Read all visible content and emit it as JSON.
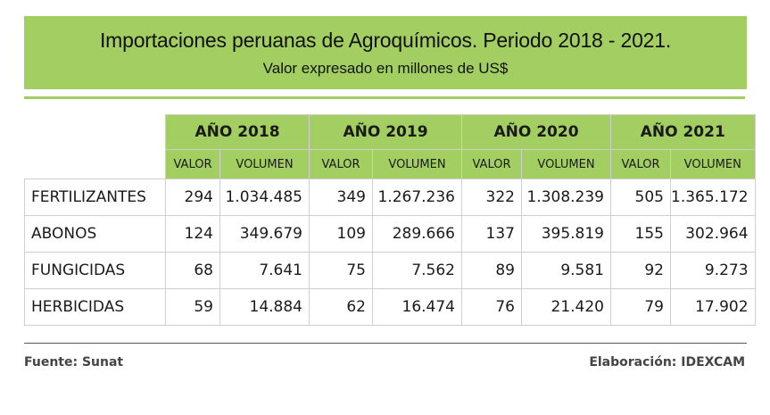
{
  "header": {
    "title": "Importaciones peruanas de Agroquímicos. Periodo 2018 - 2021.",
    "subtitle": "Valor expresado en millones de US$"
  },
  "colors": {
    "accent": "#a3cf62",
    "border": "#cfcfcf"
  },
  "table": {
    "years": [
      "AÑO 2018",
      "AÑO 2019",
      "AÑO 2020",
      "AÑO 2021"
    ],
    "subcolumns": [
      "VALOR",
      "VOLUMEN"
    ],
    "rows": [
      {
        "category": "FERTILIZANTES",
        "cells": [
          "294",
          "1.034.485",
          "349",
          "1.267.236",
          "322",
          "1.308.239",
          "505",
          "1.365.172"
        ]
      },
      {
        "category": "ABONOS",
        "cells": [
          "124",
          "349.679",
          "109",
          "289.666",
          "137",
          "395.819",
          "155",
          "302.964"
        ]
      },
      {
        "category": "FUNGICIDAS",
        "cells": [
          "68",
          "7.641",
          "75",
          "7.562",
          "89",
          "9.581",
          "92",
          "9.273"
        ]
      },
      {
        "category": "HERBICIDAS",
        "cells": [
          "59",
          "14.884",
          "62",
          "16.474",
          "76",
          "21.420",
          "79",
          "17.902"
        ]
      }
    ]
  },
  "footer": {
    "source": "Fuente:  Sunat",
    "credit": "Elaboración: IDEXCAM"
  }
}
